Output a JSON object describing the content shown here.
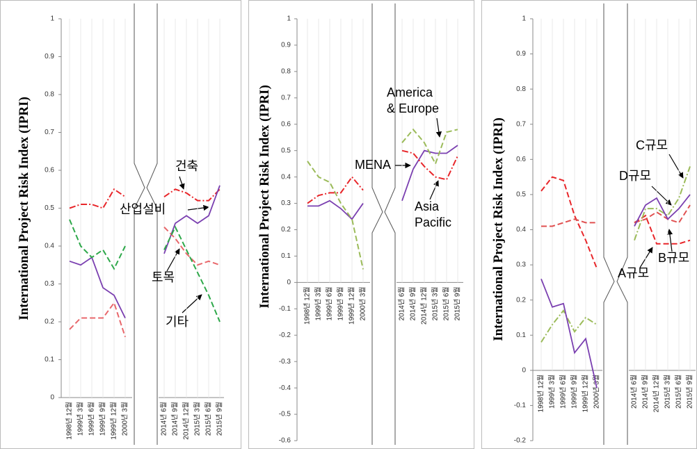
{
  "chart_data": [
    {
      "type": "line",
      "ylabel": "International Project Risk Index (IPRI)",
      "categories": [
        "1998년 12월",
        "1999년 3월",
        "1999년 6월",
        "1999년 9월",
        "1999년 12월",
        "2000년 3월",
        "2014년 6월",
        "2014년 9월",
        "2014년 12월",
        "2015년 3월",
        "2015년 6월",
        "2015년 9월"
      ],
      "ylim": [
        0,
        1
      ],
      "yticks": [
        0,
        0.1,
        0.2,
        0.3,
        0.4,
        0.5,
        0.6,
        0.7,
        0.8,
        0.9,
        1
      ],
      "series": [
        {
          "name": "건축",
          "color": "#e8262a",
          "dash": "dashdot",
          "values": [
            0.5,
            0.51,
            0.51,
            0.5,
            0.55,
            0.53,
            0.53,
            0.55,
            0.54,
            0.52,
            0.52,
            0.55
          ]
        },
        {
          "name": "산업설비",
          "color": "#7a3fb0",
          "dash": "solid",
          "values": [
            0.36,
            0.35,
            0.37,
            0.29,
            0.27,
            0.21,
            0.38,
            0.46,
            0.48,
            0.46,
            0.48,
            0.56
          ]
        },
        {
          "name": "토목",
          "color": "#e8676b",
          "dash": "dash",
          "values": [
            0.18,
            0.21,
            0.21,
            0.21,
            0.25,
            0.16,
            0.45,
            0.42,
            0.38,
            0.35,
            0.36,
            0.35
          ]
        },
        {
          "name": "기타",
          "color": "#2ea84a",
          "dash": "dash",
          "values": [
            0.47,
            0.4,
            0.37,
            0.39,
            0.34,
            0.4,
            0.39,
            0.45,
            0.39,
            0.33,
            0.27,
            0.2
          ]
        }
      ]
    },
    {
      "type": "line",
      "ylabel": "International Project Risk Index (IPRI)",
      "categories": [
        "1998년 12월",
        "1999년 3월",
        "1999년 6월",
        "1999년 9월",
        "1999년 12월",
        "2000년 3월",
        "2014년 6월",
        "2014년 9월",
        "2014년 12월",
        "2015년 3월",
        "2015년 6월",
        "2015년 9월"
      ],
      "ylim": [
        -0.6,
        1
      ],
      "yticks": [
        -0.6,
        -0.5,
        -0.4,
        -0.3,
        -0.2,
        -0.1,
        0,
        0.1,
        0.2,
        0.3,
        0.4,
        0.5,
        0.6,
        0.7,
        0.8,
        0.9,
        1
      ],
      "series": [
        {
          "name": "MENA",
          "color": "#7a3fb0",
          "dash": "solid",
          "values": [
            0.29,
            0.29,
            0.31,
            0.28,
            0.24,
            0.3,
            0.31,
            0.43,
            0.5,
            0.49,
            0.49,
            0.52
          ]
        },
        {
          "name": "America & Europe",
          "color": "#9bbb59",
          "dash": "dash",
          "values": [
            0.46,
            0.4,
            0.38,
            0.3,
            0.24,
            0.05,
            0.53,
            0.58,
            0.53,
            0.45,
            0.57,
            0.58
          ]
        },
        {
          "name": "Asia Pacific",
          "color": "#e8262a",
          "dash": "dashdot",
          "values": [
            0.3,
            0.33,
            0.34,
            0.34,
            0.4,
            0.35,
            0.5,
            0.49,
            0.44,
            0.4,
            0.39,
            0.48
          ]
        }
      ]
    },
    {
      "type": "line",
      "ylabel": "International Project Risk Index (IPRI)",
      "categories": [
        "1998년 12월",
        "1999년 3월",
        "1999년 6월",
        "1999년 9월",
        "1999년 12월",
        "2000년 3월",
        "2014년 6월",
        "2014년 9월",
        "2014년 12월",
        "2015년 3월",
        "2015년 6월",
        "2015년 9월"
      ],
      "ylim": [
        -0.2,
        1
      ],
      "yticks": [
        -0.2,
        -0.1,
        0,
        0.1,
        0.2,
        0.3,
        0.4,
        0.5,
        0.6,
        0.7,
        0.8,
        0.9,
        1
      ],
      "series": [
        {
          "name": "A규모",
          "color": "#e8262a",
          "dash": "dash",
          "values": [
            0.51,
            0.55,
            0.54,
            0.44,
            0.37,
            0.29,
            0.42,
            0.44,
            0.36,
            0.36,
            0.36,
            0.37
          ]
        },
        {
          "name": "B규모",
          "color": "#e05050",
          "dash": "dash",
          "values": [
            0.41,
            0.41,
            0.42,
            0.43,
            0.42,
            0.42,
            0.42,
            0.43,
            0.45,
            0.43,
            0.42,
            0.47
          ]
        },
        {
          "name": "C규모",
          "color": "#9bbb59",
          "dash": "dashdot",
          "values": [
            0.08,
            0.13,
            0.17,
            0.11,
            0.15,
            0.13,
            0.37,
            0.46,
            0.46,
            0.44,
            0.49,
            0.58
          ]
        },
        {
          "name": "D규모",
          "color": "#7a3fb0",
          "dash": "solid",
          "values": [
            0.26,
            0.18,
            0.19,
            0.05,
            0.09,
            -0.05,
            0.41,
            0.47,
            0.49,
            0.43,
            0.46,
            0.5
          ]
        }
      ]
    }
  ]
}
